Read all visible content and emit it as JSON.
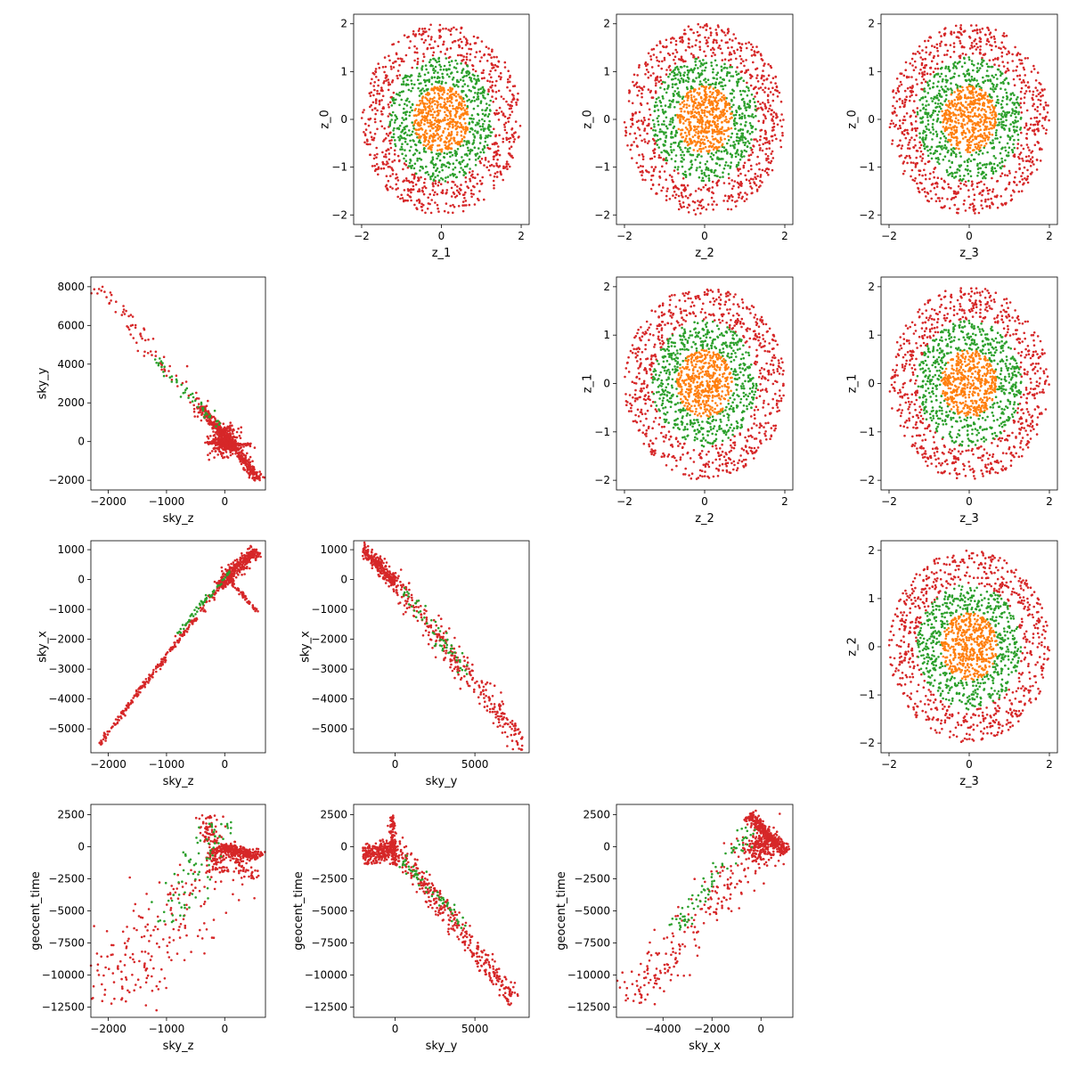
{
  "colors": {
    "orange": "#ff7f0e",
    "green": "#2ca02c",
    "red": "#d62728",
    "blue": "#1f77b4"
  },
  "chart_data": [
    {
      "type": "scatter",
      "xlabel": "z_1",
      "ylabel": "z_0",
      "xlim": [
        -2.2,
        2.2
      ],
      "ylim": [
        -2.2,
        2.2
      ],
      "xticks": [
        -2,
        0,
        2
      ],
      "yticks": [
        -2,
        -1,
        0,
        1,
        2
      ],
      "series": [
        {
          "color": "red",
          "shape": "ring",
          "r_inner": 1.3,
          "r_outer": 2.0,
          "count": 700
        },
        {
          "color": "green",
          "shape": "ring",
          "r_inner": 0.7,
          "r_outer": 1.3,
          "count": 550
        },
        {
          "color": "orange",
          "shape": "ring",
          "r_inner": 0.0,
          "r_outer": 0.7,
          "count": 450
        }
      ]
    },
    {
      "type": "scatter",
      "xlabel": "z_2",
      "ylabel": "z_0",
      "xlim": [
        -2.2,
        2.2
      ],
      "ylim": [
        -2.2,
        2.2
      ],
      "xticks": [
        -2,
        0,
        2
      ],
      "yticks": [
        -2,
        -1,
        0,
        1,
        2
      ],
      "series": [
        {
          "color": "red",
          "shape": "ring",
          "r_inner": 1.3,
          "r_outer": 2.0,
          "count": 700
        },
        {
          "color": "green",
          "shape": "ring",
          "r_inner": 0.7,
          "r_outer": 1.3,
          "count": 550
        },
        {
          "color": "orange",
          "shape": "ring",
          "r_inner": 0.0,
          "r_outer": 0.7,
          "count": 450
        }
      ]
    },
    {
      "type": "scatter",
      "xlabel": "z_3",
      "ylabel": "z_0",
      "xlim": [
        -2.2,
        2.2
      ],
      "ylim": [
        -2.2,
        2.2
      ],
      "xticks": [
        -2,
        0,
        2
      ],
      "yticks": [
        -2,
        -1,
        0,
        1,
        2
      ],
      "series": [
        {
          "color": "red",
          "shape": "ring",
          "r_inner": 1.3,
          "r_outer": 2.0,
          "count": 700
        },
        {
          "color": "green",
          "shape": "ring",
          "r_inner": 0.7,
          "r_outer": 1.3,
          "count": 550
        },
        {
          "color": "orange",
          "shape": "ring",
          "r_inner": 0.0,
          "r_outer": 0.7,
          "count": 450
        }
      ]
    },
    {
      "type": "scatter",
      "xlabel": "sky_z",
      "ylabel": "sky_y",
      "xlim": [
        -2300,
        700
      ],
      "ylim": [
        -2500,
        8500
      ],
      "xticks": [
        -2000,
        -1000,
        0
      ],
      "yticks": [
        -2000,
        0,
        2000,
        4000,
        6000,
        8000
      ],
      "series": [
        {
          "color": "red",
          "shape": "band",
          "p0": [
            -2150,
            8000
          ],
          "p1": [
            -300,
            1200
          ],
          "spread": 250,
          "count": 90
        },
        {
          "color": "red",
          "shape": "band",
          "p0": [
            -400,
            1800
          ],
          "p1": [
            600,
            -2000
          ],
          "spread": 150,
          "count": 400
        },
        {
          "color": "red",
          "shape": "band",
          "p0": [
            -300,
            -50
          ],
          "p1": [
            450,
            -150
          ],
          "spread": 40,
          "count": 150
        },
        {
          "color": "red",
          "shape": "blob",
          "p0": [
            0,
            0
          ],
          "sx": 120,
          "sy": 350,
          "count": 300
        },
        {
          "color": "green",
          "shape": "band",
          "p0": [
            -1200,
            4300
          ],
          "p1": [
            -100,
            800
          ],
          "spread": 150,
          "count": 50
        }
      ]
    },
    {
      "type": "scatter",
      "xlabel": "z_2",
      "ylabel": "z_1",
      "xlim": [
        -2.2,
        2.2
      ],
      "ylim": [
        -2.2,
        2.2
      ],
      "xticks": [
        -2,
        0,
        2
      ],
      "yticks": [
        -2,
        -1,
        0,
        1,
        2
      ],
      "series": [
        {
          "color": "red",
          "shape": "ring",
          "r_inner": 1.3,
          "r_outer": 2.0,
          "count": 700
        },
        {
          "color": "green",
          "shape": "ring",
          "r_inner": 0.7,
          "r_outer": 1.3,
          "count": 550
        },
        {
          "color": "orange",
          "shape": "ring",
          "r_inner": 0.0,
          "r_outer": 0.7,
          "count": 450
        }
      ]
    },
    {
      "type": "scatter",
      "xlabel": "z_3",
      "ylabel": "z_1",
      "xlim": [
        -2.2,
        2.2
      ],
      "ylim": [
        -2.2,
        2.2
      ],
      "xticks": [
        -2,
        0,
        2
      ],
      "yticks": [
        -2,
        -1,
        0,
        1,
        2
      ],
      "series": [
        {
          "color": "red",
          "shape": "ring",
          "r_inner": 1.3,
          "r_outer": 2.0,
          "count": 700
        },
        {
          "color": "green",
          "shape": "ring",
          "r_inner": 0.7,
          "r_outer": 1.3,
          "count": 550
        },
        {
          "color": "orange",
          "shape": "ring",
          "r_inner": 0.0,
          "r_outer": 0.7,
          "count": 450
        }
      ]
    },
    {
      "type": "scatter",
      "xlabel": "sky_z",
      "ylabel": "sky_x",
      "xlim": [
        -2300,
        700
      ],
      "ylim": [
        -5800,
        1300
      ],
      "xticks": [
        -2000,
        -1000,
        0
      ],
      "yticks": [
        -5000,
        -4000,
        -3000,
        -2000,
        -1000,
        0,
        1000
      ],
      "series": [
        {
          "color": "red",
          "shape": "band",
          "p0": [
            -2150,
            -5500
          ],
          "p1": [
            0,
            0
          ],
          "spread": 60,
          "count": 250
        },
        {
          "color": "red",
          "shape": "band",
          "p0": [
            -100,
            -200
          ],
          "p1": [
            550,
            1000
          ],
          "spread": 150,
          "count": 350
        },
        {
          "color": "red",
          "shape": "band",
          "p0": [
            50,
            100
          ],
          "p1": [
            550,
            -1100
          ],
          "spread": 60,
          "count": 60
        },
        {
          "color": "green",
          "shape": "band",
          "p0": [
            -800,
            -1800
          ],
          "p1": [
            100,
            300
          ],
          "spread": 60,
          "count": 60
        }
      ]
    },
    {
      "type": "scatter",
      "xlabel": "sky_y",
      "ylabel": "sky_x",
      "xlim": [
        -2600,
        8400
      ],
      "ylim": [
        -5800,
        1300
      ],
      "xticks": [
        0,
        5000
      ],
      "yticks": [
        -5000,
        -4000,
        -3000,
        -2000,
        -1000,
        0,
        1000
      ],
      "series": [
        {
          "color": "red",
          "shape": "band",
          "p0": [
            -2000,
            1000
          ],
          "p1": [
            0,
            -100
          ],
          "spread": 150,
          "count": 250
        },
        {
          "color": "red",
          "shape": "band",
          "p0": [
            0,
            -100
          ],
          "p1": [
            8000,
            -5500
          ],
          "spread": 300,
          "count": 300
        },
        {
          "color": "green",
          "shape": "band",
          "p0": [
            500,
            -300
          ],
          "p1": [
            4500,
            -3200
          ],
          "spread": 200,
          "count": 60
        }
      ]
    },
    {
      "type": "scatter",
      "xlabel": "z_3",
      "ylabel": "z_2",
      "xlim": [
        -2.2,
        2.2
      ],
      "ylim": [
        -2.2,
        2.2
      ],
      "xticks": [
        -2,
        0,
        2
      ],
      "yticks": [
        -2,
        -1,
        0,
        1,
        2
      ],
      "series": [
        {
          "color": "red",
          "shape": "ring",
          "r_inner": 1.3,
          "r_outer": 2.0,
          "count": 700
        },
        {
          "color": "green",
          "shape": "ring",
          "r_inner": 0.7,
          "r_outer": 1.3,
          "count": 550
        },
        {
          "color": "orange",
          "shape": "ring",
          "r_inner": 0.0,
          "r_outer": 0.7,
          "count": 450
        }
      ]
    },
    {
      "type": "scatter",
      "xlabel": "sky_z",
      "ylabel": "geocent_time",
      "xlim": [
        -2300,
        700
      ],
      "ylim": [
        -13300,
        3300
      ],
      "xticks": [
        -2000,
        -1000,
        0
      ],
      "yticks": [
        -12500,
        -10000,
        -7500,
        -5000,
        -2500,
        0,
        2500
      ],
      "series": [
        {
          "color": "red",
          "shape": "band",
          "p0": [
            -2100,
            -12500
          ],
          "p1": [
            -200,
            -1500
          ],
          "spread": 1200,
          "count": 200
        },
        {
          "color": "red",
          "shape": "band",
          "p0": [
            -300,
            2500
          ],
          "p1": [
            -100,
            -2000
          ],
          "spread": 300,
          "count": 150
        },
        {
          "color": "red",
          "shape": "band",
          "p0": [
            -100,
            0
          ],
          "p1": [
            600,
            -800
          ],
          "spread": 250,
          "count": 300
        },
        {
          "color": "red",
          "shape": "band",
          "p0": [
            0,
            0
          ],
          "p1": [
            500,
            -2500
          ],
          "spread": 200,
          "count": 60
        },
        {
          "color": "green",
          "shape": "band",
          "p0": [
            -1000,
            -6000
          ],
          "p1": [
            -100,
            2000
          ],
          "spread": 600,
          "count": 80
        }
      ]
    },
    {
      "type": "scatter",
      "xlabel": "sky_y",
      "ylabel": "geocent_time",
      "xlim": [
        -2600,
        8400
      ],
      "ylim": [
        -13300,
        3300
      ],
      "xticks": [
        0,
        5000
      ],
      "yticks": [
        -12500,
        -10000,
        -7500,
        -5000,
        -2500,
        0,
        2500
      ],
      "series": [
        {
          "color": "red",
          "shape": "band",
          "p0": [
            -2000,
            -800
          ],
          "p1": [
            0,
            0
          ],
          "spread": 400,
          "count": 250
        },
        {
          "color": "red",
          "shape": "band",
          "p0": [
            0,
            0
          ],
          "p1": [
            7500,
            -12000
          ],
          "spread": 600,
          "count": 350
        },
        {
          "color": "red",
          "shape": "band",
          "p0": [
            -200,
            2500
          ],
          "p1": [
            0,
            -1500
          ],
          "spread": 300,
          "count": 100
        },
        {
          "color": "green",
          "shape": "band",
          "p0": [
            500,
            -1000
          ],
          "p1": [
            4500,
            -6500
          ],
          "spread": 400,
          "count": 60
        }
      ]
    },
    {
      "type": "scatter",
      "xlabel": "sky_x",
      "ylabel": "geocent_time",
      "xlim": [
        -5900,
        1300
      ],
      "ylim": [
        -13300,
        3300
      ],
      "xticks": [
        -4000,
        -2000,
        0
      ],
      "yticks": [
        -12500,
        -10000,
        -7500,
        -5000,
        -2500,
        0,
        2500
      ],
      "series": [
        {
          "color": "red",
          "shape": "band",
          "p0": [
            -5500,
            -12000
          ],
          "p1": [
            -200,
            -500
          ],
          "spread": 1200,
          "count": 200
        },
        {
          "color": "red",
          "shape": "band",
          "p0": [
            -500,
            2500
          ],
          "p1": [
            1000,
            -500
          ],
          "spread": 300,
          "count": 300
        },
        {
          "color": "red",
          "shape": "blob",
          "p0": [
            0,
            0
          ],
          "sx": 400,
          "sy": 600,
          "count": 200
        },
        {
          "color": "green",
          "shape": "band",
          "p0": [
            -3500,
            -6500
          ],
          "p1": [
            -300,
            1500
          ],
          "spread": 500,
          "count": 80
        }
      ]
    }
  ]
}
